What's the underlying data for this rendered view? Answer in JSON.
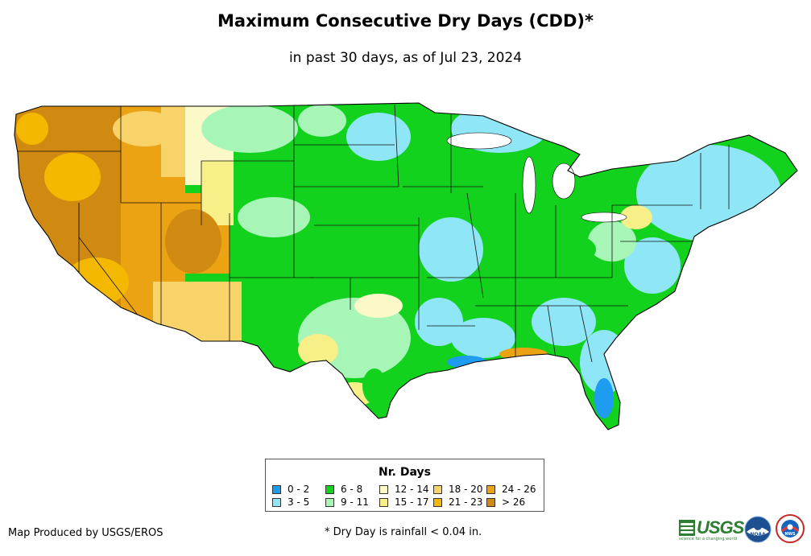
{
  "header": {
    "title": "Maximum Consecutive Dry Days (CDD)*",
    "subtitle": "in past 30 days, as of Jul 23, 2024"
  },
  "legend": {
    "title": "Nr. Days",
    "items": [
      {
        "label": "0 - 2",
        "color": "#1e9cf0"
      },
      {
        "label": "3 - 5",
        "color": "#8ee6f7"
      },
      {
        "label": "6 - 8",
        "color": "#12d21e"
      },
      {
        "label": "9 - 11",
        "color": "#a8f5b8"
      },
      {
        "label": "12 - 14",
        "color": "#fbf9c8"
      },
      {
        "label": "15 - 17",
        "color": "#f7ef88"
      },
      {
        "label": "18 - 20",
        "color": "#f7d36a"
      },
      {
        "label": "21 - 23",
        "color": "#f5b800"
      },
      {
        "label": "24 - 26",
        "color": "#eca313"
      },
      {
        "label": "> 26",
        "color": "#d08a12"
      }
    ]
  },
  "footer": {
    "producer": "Map Produced by USGS/EROS",
    "note": "* Dry Day is rainfall < 0.04 in."
  },
  "logos": {
    "usgs_text": "USGS",
    "usgs_tagline": "science for a changing world",
    "noaa_text": "NOAA",
    "nws_text": "NWS"
  }
}
